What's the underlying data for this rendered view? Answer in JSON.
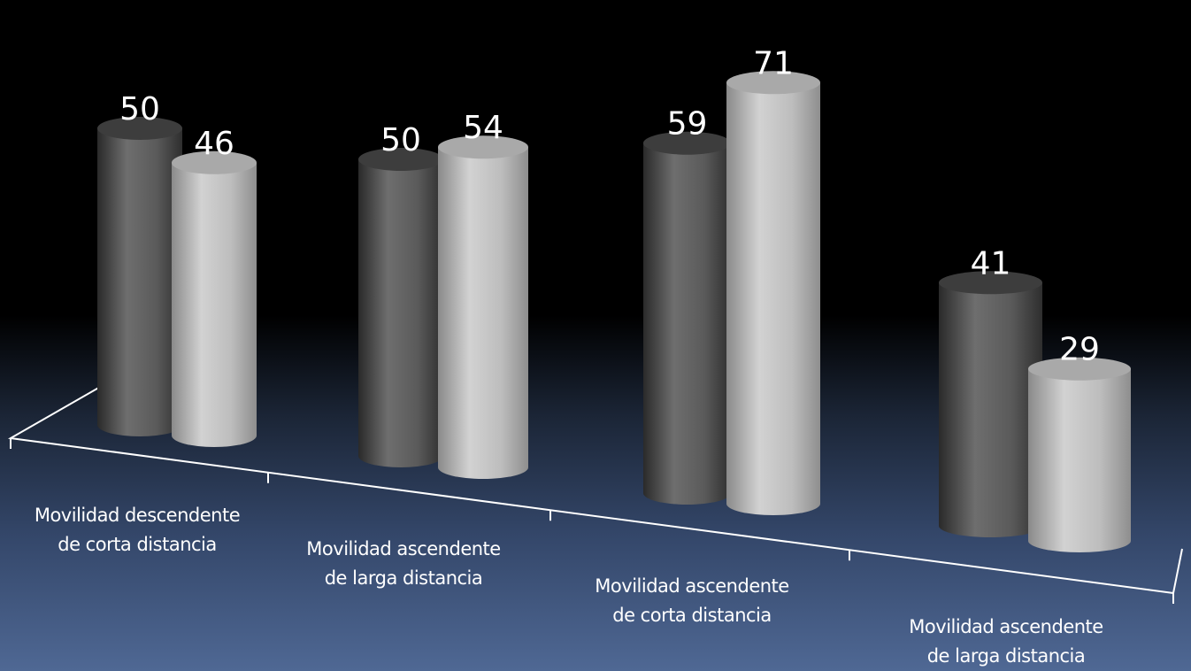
{
  "chart_data": {
    "type": "bar",
    "style": "3d-cylinder",
    "title": "",
    "xlabel": "",
    "ylabel": "",
    "categories": [
      [
        "Movilidad descendente",
        "de corta distancia"
      ],
      [
        "Movilidad ascendente",
        "de larga distancia"
      ],
      [
        "Movilidad ascendente",
        "de corta distancia"
      ],
      [
        "Movilidad ascendente",
        "de larga distancia"
      ]
    ],
    "series": [
      {
        "values": [
          50,
          50,
          59,
          41
        ],
        "color": "#5a5a5a"
      },
      {
        "values": [
          46,
          54,
          71,
          29
        ],
        "color": "#b4b4b4"
      }
    ],
    "data_labels": true,
    "legend": "none",
    "grid": false
  }
}
